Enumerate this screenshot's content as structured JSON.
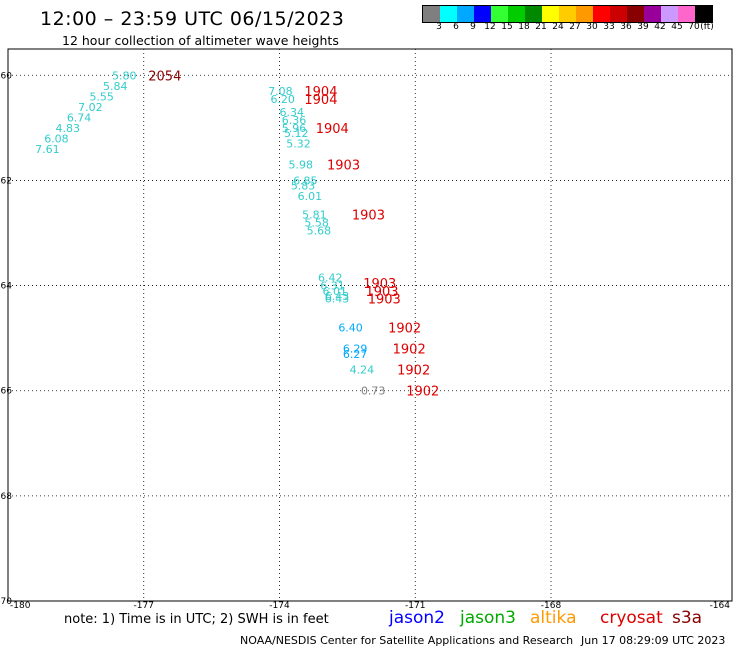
{
  "header": {
    "title": "12:00 – 23:59 UTC 06/15/2023",
    "subtitle": "12 hour collection of altimeter wave heights"
  },
  "colorbar": {
    "colors": [
      "#7f7f7f",
      "#00ffff",
      "#00a9ff",
      "#0000ff",
      "#33ff33",
      "#00cc00",
      "#008800",
      "#ffff00",
      "#ffcc00",
      "#ff9900",
      "#ff0000",
      "#cc0000",
      "#880000",
      "#990099",
      "#cc99ff",
      "#ff66cc",
      "#000000"
    ],
    "labels": [
      "3",
      "6",
      "9",
      "12",
      "15",
      "18",
      "21",
      "24",
      "27",
      "30",
      "33",
      "36",
      "39",
      "42",
      "45",
      "70",
      "(ft)"
    ]
  },
  "map_data": {
    "lon_range": [
      -180,
      -164
    ],
    "lat_range": [
      -70,
      -59.5
    ],
    "lat_ticks": [
      "-60",
      "-62",
      "-64",
      "-66",
      "-68",
      "-70"
    ],
    "lon_ticks": [
      "-180",
      "-177",
      "-174",
      "-171",
      "-168",
      "-164"
    ],
    "points": [
      {
        "lon": -177.7,
        "lat": -60.0,
        "label": "5.80",
        "color": "#33cccc"
      },
      {
        "lon": -177.9,
        "lat": -60.2,
        "label": "5.84",
        "color": "#33cccc"
      },
      {
        "lon": -178.2,
        "lat": -60.4,
        "label": "5.55",
        "color": "#33cccc"
      },
      {
        "lon": -178.45,
        "lat": -60.6,
        "label": "7.02",
        "color": "#33cccc"
      },
      {
        "lon": -178.7,
        "lat": -60.8,
        "label": "6.74",
        "color": "#33cccc"
      },
      {
        "lon": -178.95,
        "lat": -61.0,
        "label": "4.83",
        "color": "#33cccc"
      },
      {
        "lon": -179.2,
        "lat": -61.2,
        "label": "6.08",
        "color": "#33cccc"
      },
      {
        "lon": -179.4,
        "lat": -61.4,
        "label": "7.61",
        "color": "#33cccc"
      },
      {
        "lon": -174.25,
        "lat": -60.3,
        "label": "7.08",
        "color": "#33cccc"
      },
      {
        "lon": -174.2,
        "lat": -60.45,
        "label": "6.20",
        "color": "#33cccc"
      },
      {
        "lon": -174.0,
        "lat": -60.7,
        "label": "6.34",
        "color": "#33cccc"
      },
      {
        "lon": -173.95,
        "lat": -60.85,
        "label": "6.36",
        "color": "#33cccc"
      },
      {
        "lon": -173.95,
        "lat": -61.0,
        "label": "5.96",
        "color": "#33cccc"
      },
      {
        "lon": -173.9,
        "lat": -61.1,
        "label": "5.12",
        "color": "#33cccc"
      },
      {
        "lon": -173.85,
        "lat": -61.3,
        "label": "5.32",
        "color": "#33cccc"
      },
      {
        "lon": -173.8,
        "lat": -61.7,
        "label": "5.98",
        "color": "#33cccc"
      },
      {
        "lon": -173.7,
        "lat": -62.0,
        "label": "6.85",
        "color": "#33cccc"
      },
      {
        "lon": -173.75,
        "lat": -62.1,
        "label": "5.83",
        "color": "#33cccc"
      },
      {
        "lon": -173.6,
        "lat": -62.3,
        "label": "6.01",
        "color": "#33cccc"
      },
      {
        "lon": -173.5,
        "lat": -62.65,
        "label": "5.81",
        "color": "#33cccc"
      },
      {
        "lon": -173.45,
        "lat": -62.8,
        "label": "5.58",
        "color": "#33cccc"
      },
      {
        "lon": -173.4,
        "lat": -62.95,
        "label": "5.68",
        "color": "#33cccc"
      },
      {
        "lon": -173.15,
        "lat": -63.85,
        "label": "6.42",
        "color": "#33cccc"
      },
      {
        "lon": -173.1,
        "lat": -64.0,
        "label": "6.31",
        "color": "#33cccc"
      },
      {
        "lon": -173.05,
        "lat": -64.1,
        "label": "6.01",
        "color": "#33cccc"
      },
      {
        "lon": -173.0,
        "lat": -64.2,
        "label": "6.43",
        "color": "#33cccc"
      },
      {
        "lon": -173.0,
        "lat": -64.25,
        "label": "6.43",
        "color": "#33cccc"
      },
      {
        "lon": -172.7,
        "lat": -64.8,
        "label": "6.40",
        "color": "#00a9ff"
      },
      {
        "lon": -172.6,
        "lat": -65.2,
        "label": "6.29",
        "color": "#00a9ff"
      },
      {
        "lon": -172.6,
        "lat": -65.3,
        "label": "6.27",
        "color": "#00a9ff"
      },
      {
        "lon": -172.45,
        "lat": -65.6,
        "label": "4.24",
        "color": "#33cccc"
      },
      {
        "lon": -172.2,
        "lat": -66.0,
        "label": "0.73",
        "color": "#7f7f7f"
      }
    ],
    "times": [
      {
        "lon": -176.9,
        "lat": -60.0,
        "label": "2054",
        "color": "#880000"
      },
      {
        "lon": -173.45,
        "lat": -60.3,
        "label": "1904",
        "color": "#dd0000"
      },
      {
        "lon": -173.45,
        "lat": -60.45,
        "label": "1904",
        "color": "#dd0000"
      },
      {
        "lon": -173.2,
        "lat": -61.0,
        "label": "1904",
        "color": "#dd0000"
      },
      {
        "lon": -172.95,
        "lat": -61.7,
        "label": "1903",
        "color": "#dd0000"
      },
      {
        "lon": -172.4,
        "lat": -62.65,
        "label": "1903",
        "color": "#dd0000"
      },
      {
        "lon": -172.15,
        "lat": -63.95,
        "label": "1903",
        "color": "#dd0000"
      },
      {
        "lon": -172.1,
        "lat": -64.1,
        "label": "1903",
        "color": "#dd0000"
      },
      {
        "lon": -172.05,
        "lat": -64.25,
        "label": "1903",
        "color": "#dd0000"
      },
      {
        "lon": -171.6,
        "lat": -64.8,
        "label": "1902",
        "color": "#dd0000"
      },
      {
        "lon": -171.5,
        "lat": -65.2,
        "label": "1902",
        "color": "#dd0000"
      },
      {
        "lon": -171.4,
        "lat": -65.6,
        "label": "1902",
        "color": "#dd0000"
      },
      {
        "lon": -171.2,
        "lat": -66.0,
        "label": "1902",
        "color": "#dd0000"
      }
    ]
  },
  "footer": {
    "note": "note: 1) Time is in UTC; 2) SWH is in feet",
    "missions": [
      {
        "name": "jason2",
        "color": "#0000ff"
      },
      {
        "name": "jason3",
        "color": "#00aa00"
      },
      {
        "name": "altika",
        "color": "#ff9900"
      },
      {
        "name": "cryosat",
        "color": "#dd0000"
      },
      {
        "name": "s3a",
        "color": "#880000"
      }
    ],
    "credit": "NOAA/NESDIS Center for Satellite Applications and Research",
    "timestamp": "Jun 17 08:29:09 UTC 2023"
  }
}
